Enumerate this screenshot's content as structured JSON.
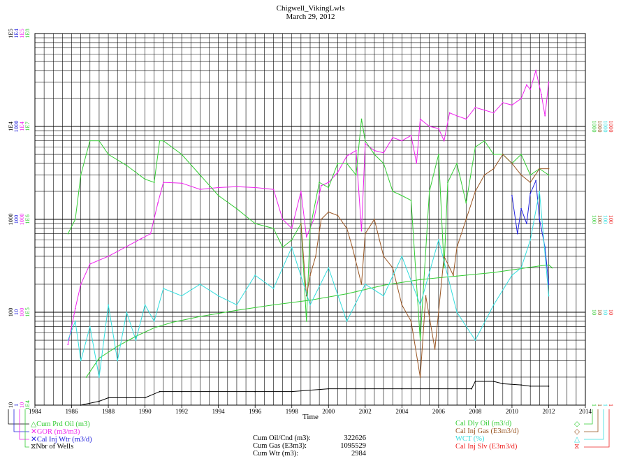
{
  "title": "Chigwell_VikingLwls",
  "date": "March 29, 2012",
  "xlabel": "Time",
  "colors": {
    "cum_prd_oil": "#33cc33",
    "gor": "#ee22ee",
    "cal_inj_wtr": "#2222dd",
    "nbr_wells": "#000000",
    "cal_dly_oil": "#33cc33",
    "cal_inj_gas": "#995522",
    "wct": "#33dddd",
    "cal_inj_slv": "#ee2222",
    "grid": "#000000"
  },
  "legend_left": [
    {
      "symbol": "△",
      "label": "Cum Prd Oil (m3)",
      "color": "#33cc33"
    },
    {
      "symbol": "✕",
      "label": "GOR (m3/m3)",
      "color": "#ee22ee"
    },
    {
      "symbol": "✕",
      "label": "Cal Inj Wtr (m3/d)",
      "color": "#2222dd"
    },
    {
      "symbol": "⧖",
      "label": "Nbr of Wells",
      "color": "#000000"
    }
  ],
  "legend_right": [
    {
      "symbol": "◇",
      "label": "Cal Dly Oil (m3/d)",
      "color": "#33cc33"
    },
    {
      "symbol": "◇",
      "label": "Cal Inj Gas (E3m3/d)",
      "color": "#995522"
    },
    {
      "symbol": "△",
      "label": "WCT (%)",
      "color": "#33dddd"
    },
    {
      "symbol": "⧖",
      "label": "Cal Inj Slv (E3m3/d)",
      "color": "#ee2222"
    }
  ],
  "stats": [
    {
      "label": "Cum Oil/Cnd (m3):",
      "value": "322626"
    },
    {
      "label": "Cum Gas (E3m3):",
      "value": "1095529"
    },
    {
      "label": "Cum Wtr (m3):",
      "value": "2984"
    }
  ],
  "left_axis": {
    "series_colors": [
      "#000000",
      "#2222dd",
      "#ee22ee",
      "#33cc33"
    ],
    "ticks": [
      {
        "decade": 0,
        "labels": [
          "10",
          "1",
          "10",
          "1E4"
        ]
      },
      {
        "decade": 1,
        "labels": [
          "100",
          "10",
          "100",
          "1E5"
        ]
      },
      {
        "decade": 2,
        "labels": [
          "1000",
          "100",
          "1000",
          "1E6"
        ]
      },
      {
        "decade": 3,
        "labels": [
          "1E4",
          "1000",
          "1E4",
          "1E7"
        ]
      },
      {
        "decade": 4,
        "labels": [
          "1E5",
          "1E4",
          "1E5",
          "1E8"
        ]
      }
    ]
  },
  "right_axis": {
    "series_colors": [
      "#33cc33",
      "#995522",
      "#33dddd",
      "#ee2222"
    ],
    "ticks": [
      {
        "decade": 0,
        "labels": [
          "1",
          "1",
          "1",
          "1"
        ]
      },
      {
        "decade": 1,
        "labels": [
          "10",
          "10",
          "10",
          "10"
        ]
      },
      {
        "decade": 2,
        "labels": [
          "100",
          "100",
          "100",
          "100"
        ]
      },
      {
        "decade": 3,
        "labels": [
          "1000",
          "1000",
          "1000",
          "1000"
        ]
      }
    ]
  },
  "chart_data": {
    "type": "line",
    "title": "Chigwell_VikingLwls",
    "subtitle": "March 29, 2012",
    "xlabel": "Time",
    "x_ticks": [
      "1984",
      "1986",
      "1988",
      "1990",
      "1992",
      "1994",
      "1996",
      "1998",
      "2000",
      "2002",
      "2004",
      "2006",
      "2008",
      "2010",
      "2012",
      "2014"
    ],
    "xlim": [
      1984,
      2014
    ],
    "grid": true,
    "y_scale": "log",
    "legend_position": "bottom",
    "series": [
      {
        "name": "Cum Prd Oil (m3)",
        "axis": "left-4",
        "ylim": [
          10000,
          100000000
        ],
        "points": [
          [
            1986.8,
            20000
          ],
          [
            1987.5,
            32000
          ],
          [
            1988.5,
            43000
          ],
          [
            1989.5,
            55000
          ],
          [
            1990.5,
            68000
          ],
          [
            1991.5,
            78000
          ],
          [
            1993,
            90000
          ],
          [
            1995,
            105000
          ],
          [
            1997,
            120000
          ],
          [
            1999,
            135000
          ],
          [
            2001,
            158000
          ],
          [
            2003,
            195000
          ],
          [
            2005,
            225000
          ],
          [
            2007,
            245000
          ],
          [
            2009,
            268000
          ],
          [
            2010.5,
            295000
          ],
          [
            2011.5,
            315000
          ],
          [
            2012,
            322626
          ],
          [
            2012.2,
            300000
          ]
        ]
      },
      {
        "name": "GOR (m3/m3)",
        "axis": "left-3",
        "ylim": [
          10,
          100000
        ],
        "points": [
          [
            1985.8,
            45
          ],
          [
            1986.2,
            110
          ],
          [
            1986.5,
            200
          ],
          [
            1987,
            330
          ],
          [
            1988,
            400
          ],
          [
            1989,
            510
          ],
          [
            1989.8,
            620
          ],
          [
            1990.3,
            700
          ],
          [
            1990.7,
            1500
          ],
          [
            1991,
            2500
          ],
          [
            1992,
            2450
          ],
          [
            1993,
            2100
          ],
          [
            1994,
            2200
          ],
          [
            1995,
            2250
          ],
          [
            1996,
            2200
          ],
          [
            1997,
            2100
          ],
          [
            1997.5,
            1000
          ],
          [
            1998,
            800
          ],
          [
            1998.5,
            2000
          ],
          [
            1998.8,
            650
          ],
          [
            1999.2,
            1000
          ],
          [
            1999.6,
            2300
          ],
          [
            2000,
            2500
          ],
          [
            2000.5,
            3200
          ],
          [
            2001,
            4800
          ],
          [
            2001.5,
            5500
          ],
          [
            2001.8,
            750
          ],
          [
            2002,
            6500
          ],
          [
            2002.5,
            5500
          ],
          [
            2003,
            5200
          ],
          [
            2003.5,
            7600
          ],
          [
            2004,
            7000
          ],
          [
            2004.5,
            8000
          ],
          [
            2004.8,
            4000
          ],
          [
            2005,
            12000
          ],
          [
            2005.5,
            10000
          ],
          [
            2006,
            9500
          ],
          [
            2006.3,
            7000
          ],
          [
            2006.6,
            14000
          ],
          [
            2007,
            13000
          ],
          [
            2007.5,
            12000
          ],
          [
            2008,
            16000
          ],
          [
            2008.5,
            15000
          ],
          [
            2009,
            14000
          ],
          [
            2009.5,
            18000
          ],
          [
            2010,
            17000
          ],
          [
            2010.5,
            20000
          ],
          [
            2010.8,
            28000
          ],
          [
            2011,
            25000
          ],
          [
            2011.3,
            40000
          ],
          [
            2011.6,
            22000
          ],
          [
            2011.8,
            13000
          ],
          [
            2012,
            30000
          ]
        ]
      },
      {
        "name": "Cal Inj Wtr (m3/d)",
        "axis": "left-2",
        "ylim": [
          1,
          10000
        ],
        "points": [
          [
            2010,
            180
          ],
          [
            2010.3,
            70
          ],
          [
            2010.5,
            130
          ],
          [
            2010.8,
            90
          ],
          [
            2011,
            190
          ],
          [
            2011.3,
            260
          ],
          [
            2011.5,
            100
          ],
          [
            2011.8,
            50
          ],
          [
            2012,
            20
          ]
        ]
      },
      {
        "name": "Nbr of Wells",
        "axis": "left-1",
        "ylim": [
          10,
          100000
        ],
        "points": [
          [
            1986.5,
            10
          ],
          [
            1987.5,
            11
          ],
          [
            1988,
            12
          ],
          [
            1989,
            12
          ],
          [
            1990,
            12
          ],
          [
            1990.8,
            14
          ],
          [
            1992,
            14
          ],
          [
            1996,
            14
          ],
          [
            1998,
            14
          ],
          [
            2000,
            15
          ],
          [
            2002,
            15
          ],
          [
            2004,
            15
          ],
          [
            2006,
            15
          ],
          [
            2007.8,
            15
          ],
          [
            2008,
            18
          ],
          [
            2009,
            18
          ],
          [
            2009.5,
            17
          ],
          [
            2010.5,
            16.5
          ],
          [
            2011,
            16
          ],
          [
            2012,
            16
          ]
        ]
      },
      {
        "name": "Cal Dly Oil (m3/d)",
        "axis": "right-1",
        "ylim": [
          1,
          10000
        ],
        "points": [
          [
            1985.8,
            70
          ],
          [
            1986.2,
            100
          ],
          [
            1986.5,
            300
          ],
          [
            1986.8,
            500
          ],
          [
            1987,
            700
          ],
          [
            1987.5,
            700
          ],
          [
            1988,
            500
          ],
          [
            1989,
            380
          ],
          [
            1990,
            270
          ],
          [
            1990.5,
            250
          ],
          [
            1990.8,
            700
          ],
          [
            1991,
            700
          ],
          [
            1992,
            500
          ],
          [
            1993,
            300
          ],
          [
            1994,
            180
          ],
          [
            1995,
            130
          ],
          [
            1996,
            90
          ],
          [
            1997,
            80
          ],
          [
            1997.5,
            50
          ],
          [
            1998,
            60
          ],
          [
            1998.5,
            90
          ],
          [
            1998.8,
            8
          ],
          [
            1999,
            80
          ],
          [
            1999.5,
            250
          ],
          [
            2000,
            220
          ],
          [
            2000.5,
            400
          ],
          [
            2001,
            400
          ],
          [
            2001.5,
            300
          ],
          [
            2001.8,
            1200
          ],
          [
            2002,
            700
          ],
          [
            2002.5,
            500
          ],
          [
            2003,
            400
          ],
          [
            2003.5,
            200
          ],
          [
            2004,
            180
          ],
          [
            2004.5,
            160
          ],
          [
            2005,
            5
          ],
          [
            2005.5,
            200
          ],
          [
            2006,
            500
          ],
          [
            2006.3,
            30
          ],
          [
            2006.5,
            250
          ],
          [
            2007,
            400
          ],
          [
            2007.5,
            150
          ],
          [
            2008,
            600
          ],
          [
            2008.5,
            700
          ],
          [
            2009,
            500
          ],
          [
            2009.5,
            500
          ],
          [
            2010,
            400
          ],
          [
            2010.5,
            500
          ],
          [
            2011,
            300
          ],
          [
            2011.5,
            350
          ],
          [
            2012,
            300
          ]
        ]
      },
      {
        "name": "Cal Inj Gas (E3m3/d)",
        "axis": "right-2",
        "ylim": [
          1,
          10000
        ],
        "points": [
          [
            1998.5,
            90
          ],
          [
            1998.8,
            15
          ],
          [
            1999,
            25
          ],
          [
            1999.3,
            40
          ],
          [
            1999.6,
            100
          ],
          [
            2000,
            120
          ],
          [
            2000.5,
            110
          ],
          [
            2001,
            80
          ],
          [
            2001.3,
            50
          ],
          [
            2001.8,
            20
          ],
          [
            2002,
            70
          ],
          [
            2002.5,
            100
          ],
          [
            2003,
            40
          ],
          [
            2003.5,
            30
          ],
          [
            2004,
            12
          ],
          [
            2004.5,
            8
          ],
          [
            2005,
            2
          ],
          [
            2005.3,
            15
          ],
          [
            2005.8,
            4
          ],
          [
            2006.3,
            40
          ],
          [
            2006.8,
            25
          ],
          [
            2007,
            50
          ],
          [
            2007.5,
            100
          ],
          [
            2008,
            200
          ],
          [
            2008.5,
            300
          ],
          [
            2009,
            350
          ],
          [
            2009.5,
            500
          ],
          [
            2010,
            400
          ],
          [
            2010.5,
            300
          ],
          [
            2011,
            250
          ],
          [
            2011.5,
            350
          ],
          [
            2012,
            350
          ]
        ]
      },
      {
        "name": "WCT (%)",
        "axis": "right-3",
        "ylim": [
          1,
          10000
        ],
        "points": [
          [
            1985.8,
            5
          ],
          [
            1986.2,
            8
          ],
          [
            1986.5,
            3
          ],
          [
            1987,
            7
          ],
          [
            1987.5,
            2
          ],
          [
            1988,
            12
          ],
          [
            1988.5,
            3
          ],
          [
            1989,
            10
          ],
          [
            1989.5,
            5
          ],
          [
            1990,
            12
          ],
          [
            1990.5,
            8
          ],
          [
            1991,
            18
          ],
          [
            1992,
            15
          ],
          [
            1993,
            20
          ],
          [
            1994,
            15
          ],
          [
            1995,
            12
          ],
          [
            1996,
            25
          ],
          [
            1997,
            18
          ],
          [
            1998,
            50
          ],
          [
            1999,
            12
          ],
          [
            2000,
            30
          ],
          [
            2001,
            8
          ],
          [
            2002,
            20
          ],
          [
            2003,
            15
          ],
          [
            2004,
            40
          ],
          [
            2005,
            12
          ],
          [
            2006,
            60
          ],
          [
            2007,
            10
          ],
          [
            2008,
            5
          ],
          [
            2009,
            12
          ],
          [
            2010,
            25
          ],
          [
            2010.5,
            30
          ],
          [
            2011,
            60
          ],
          [
            2011.5,
            200
          ],
          [
            2012,
            15
          ]
        ]
      },
      {
        "name": "Cal Inj Slv (E3m3/d)",
        "axis": "right-4",
        "ylim": [
          1,
          10000
        ],
        "points": []
      }
    ]
  }
}
